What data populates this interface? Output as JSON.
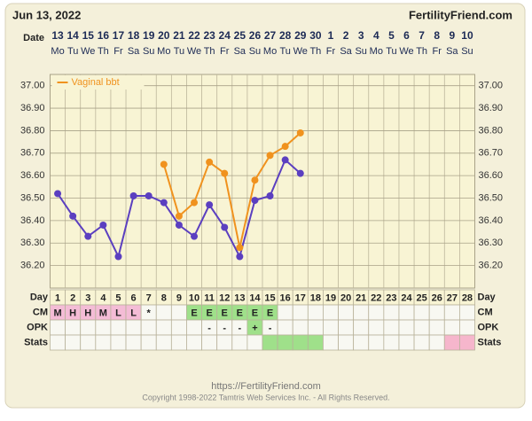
{
  "header": {
    "date": "Jun 13, 2022",
    "site": "FertilityFriend.com"
  },
  "chart_data": {
    "type": "line",
    "date_label": "Date",
    "categories": [
      "13",
      "14",
      "15",
      "16",
      "17",
      "18",
      "19",
      "20",
      "21",
      "22",
      "23",
      "24",
      "25",
      "26",
      "27",
      "28",
      "29",
      "30",
      "1",
      "2",
      "3",
      "4",
      "5",
      "6",
      "7",
      "8",
      "9",
      "10"
    ],
    "weekdays": [
      "Mo",
      "Tu",
      "We",
      "Th",
      "Fr",
      "Sa",
      "Su",
      "Mo",
      "Tu",
      "We",
      "Th",
      "Fr",
      "Sa",
      "Su",
      "Mo",
      "Tu",
      "We",
      "Th",
      "Fr",
      "Sa",
      "Su",
      "Mo",
      "Tu",
      "We",
      "Th",
      "Fr",
      "Sa",
      "Su"
    ],
    "series": [
      {
        "name": null,
        "color": "#5b3fc0",
        "values": [
          36.52,
          36.42,
          36.33,
          36.38,
          36.24,
          36.51,
          36.51,
          36.48,
          36.38,
          36.33,
          36.47,
          36.37,
          36.24,
          36.49,
          36.51,
          36.67,
          36.61,
          null,
          null,
          null,
          null,
          null,
          null,
          null,
          null,
          null,
          null,
          null
        ]
      },
      {
        "name": "Vaginal bbt",
        "color": "#f0921e",
        "values": [
          null,
          null,
          null,
          null,
          null,
          null,
          null,
          36.65,
          36.42,
          36.48,
          36.66,
          36.61,
          36.28,
          36.58,
          36.69,
          36.73,
          36.79,
          null,
          null,
          null,
          null,
          null,
          null,
          null,
          null,
          null,
          null,
          null
        ]
      }
    ],
    "ylim": [
      36.1,
      37.05
    ],
    "yticks": [
      {
        "value": 36.2,
        "label": "36.20"
      },
      {
        "value": 36.3,
        "label": "36.30"
      },
      {
        "value": 36.4,
        "label": "36.40"
      },
      {
        "value": 36.5,
        "label": "36.50"
      },
      {
        "value": 36.6,
        "label": "36.60"
      },
      {
        "value": 36.7,
        "label": "36.70"
      },
      {
        "value": 36.8,
        "label": "36.80"
      },
      {
        "value": 36.9,
        "label": "36.90"
      },
      {
        "value": 37,
        "label": "37.00"
      }
    ],
    "grid": true,
    "legend": "top-left"
  },
  "fertility_table": {
    "rows": [
      {
        "label": "Day",
        "cells": [
          1,
          2,
          3,
          4,
          5,
          6,
          7,
          8,
          9,
          10,
          11,
          12,
          13,
          14,
          15,
          16,
          17,
          18,
          19,
          20,
          21,
          22,
          23,
          24,
          25,
          26,
          27,
          28
        ],
        "colors": [
          null,
          null,
          null,
          null,
          null,
          null,
          null,
          null,
          null,
          null,
          null,
          null,
          null,
          null,
          null,
          null,
          null,
          null,
          null,
          null,
          null,
          null,
          null,
          null,
          null,
          null,
          null,
          null
        ]
      },
      {
        "label": "CM",
        "cells": [
          "M",
          "H",
          "H",
          "M",
          "L",
          "L",
          "*",
          null,
          null,
          "E",
          "E",
          "E",
          "E",
          "E",
          "E",
          null,
          null,
          null,
          null,
          null,
          null,
          null,
          null,
          null,
          null,
          null,
          null,
          null
        ],
        "colors": [
          "#f4bcd6",
          "#f4bcd6",
          "#f4bcd6",
          "#f4bcd6",
          "#f4bcd6",
          "#f4bcd6",
          null,
          null,
          null,
          "#9fe08a",
          "#9fe08a",
          "#9fe08a",
          "#9fe08a",
          "#9fe08a",
          "#9fe08a",
          null,
          null,
          null,
          null,
          null,
          null,
          null,
          null,
          null,
          null,
          null,
          null,
          null
        ]
      },
      {
        "label": "OPK",
        "cells": [
          null,
          null,
          null,
          null,
          null,
          null,
          null,
          null,
          null,
          null,
          "-",
          "-",
          "-",
          "+",
          "-",
          null,
          null,
          null,
          null,
          null,
          null,
          null,
          null,
          null,
          null,
          null,
          null,
          null
        ],
        "colors": [
          null,
          null,
          null,
          null,
          null,
          null,
          null,
          null,
          null,
          null,
          null,
          null,
          null,
          "#9fe08a",
          null,
          null,
          null,
          null,
          null,
          null,
          null,
          null,
          null,
          null,
          null,
          null,
          null,
          null
        ]
      },
      {
        "label": "Stats",
        "cells": [
          null,
          null,
          null,
          null,
          null,
          null,
          null,
          null,
          null,
          null,
          null,
          null,
          null,
          null,
          null,
          null,
          null,
          null,
          null,
          null,
          null,
          null,
          null,
          null,
          null,
          null,
          null,
          null
        ],
        "colors": [
          null,
          null,
          null,
          null,
          null,
          null,
          null,
          null,
          null,
          null,
          null,
          null,
          null,
          null,
          "#9fe08a",
          "#9fe08a",
          "#9fe08a",
          "#9fe08a",
          null,
          null,
          null,
          null,
          null,
          null,
          null,
          null,
          "#f6b6cc",
          "#f6b6cc"
        ]
      }
    ]
  },
  "footer": {
    "url": "https://FertilityFriend.com",
    "copyright": "Copyright 1998-2022 Tamtris Web Services Inc. - All Rights Reserved."
  }
}
